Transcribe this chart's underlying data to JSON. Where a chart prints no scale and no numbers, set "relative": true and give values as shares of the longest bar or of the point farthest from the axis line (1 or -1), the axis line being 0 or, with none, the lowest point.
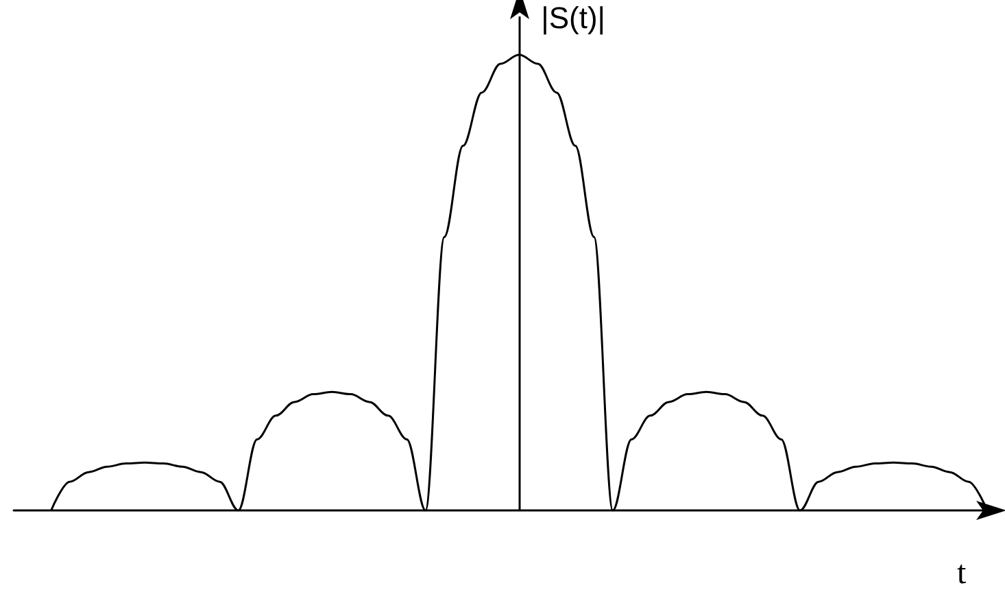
{
  "chart_data": {
    "type": "line",
    "relative": true,
    "xlabel": "t",
    "ylabel": "|S(t)|",
    "color": "#000000",
    "marker": "none",
    "line_style": "solid",
    "grid": false,
    "categories": [
      null,
      null,
      null,
      null,
      null,
      null,
      null,
      null,
      null,
      null,
      null,
      null,
      null,
      null,
      null,
      null,
      null,
      null,
      null,
      null,
      null,
      null,
      null,
      null,
      null,
      null,
      null,
      null,
      null,
      null,
      null,
      null,
      null,
      null,
      null,
      null,
      null,
      null,
      null,
      null,
      null,
      null,
      null,
      null,
      null,
      null,
      null,
      null,
      null,
      null,
      null,
      null,
      null
    ],
    "values": [
      null,
      null,
      0,
      0.063,
      0.084,
      0.096,
      0.103,
      0.105,
      0.103,
      0.096,
      0.084,
      0.063,
      0,
      0.156,
      0.208,
      0.238,
      0.255,
      0.26,
      0.255,
      0.238,
      0.208,
      0.156,
      0,
      0.6,
      0.8,
      0.917,
      0.98,
      1,
      0.98,
      0.917,
      0.8,
      0.6,
      0,
      0.156,
      0.208,
      0.238,
      0.255,
      0.26,
      0.255,
      0.238,
      0.208,
      0.156,
      0,
      0.063,
      0.084,
      0.096,
      0.103,
      0.105,
      0.103,
      0.096,
      0.084,
      0.063,
      0
    ]
  }
}
